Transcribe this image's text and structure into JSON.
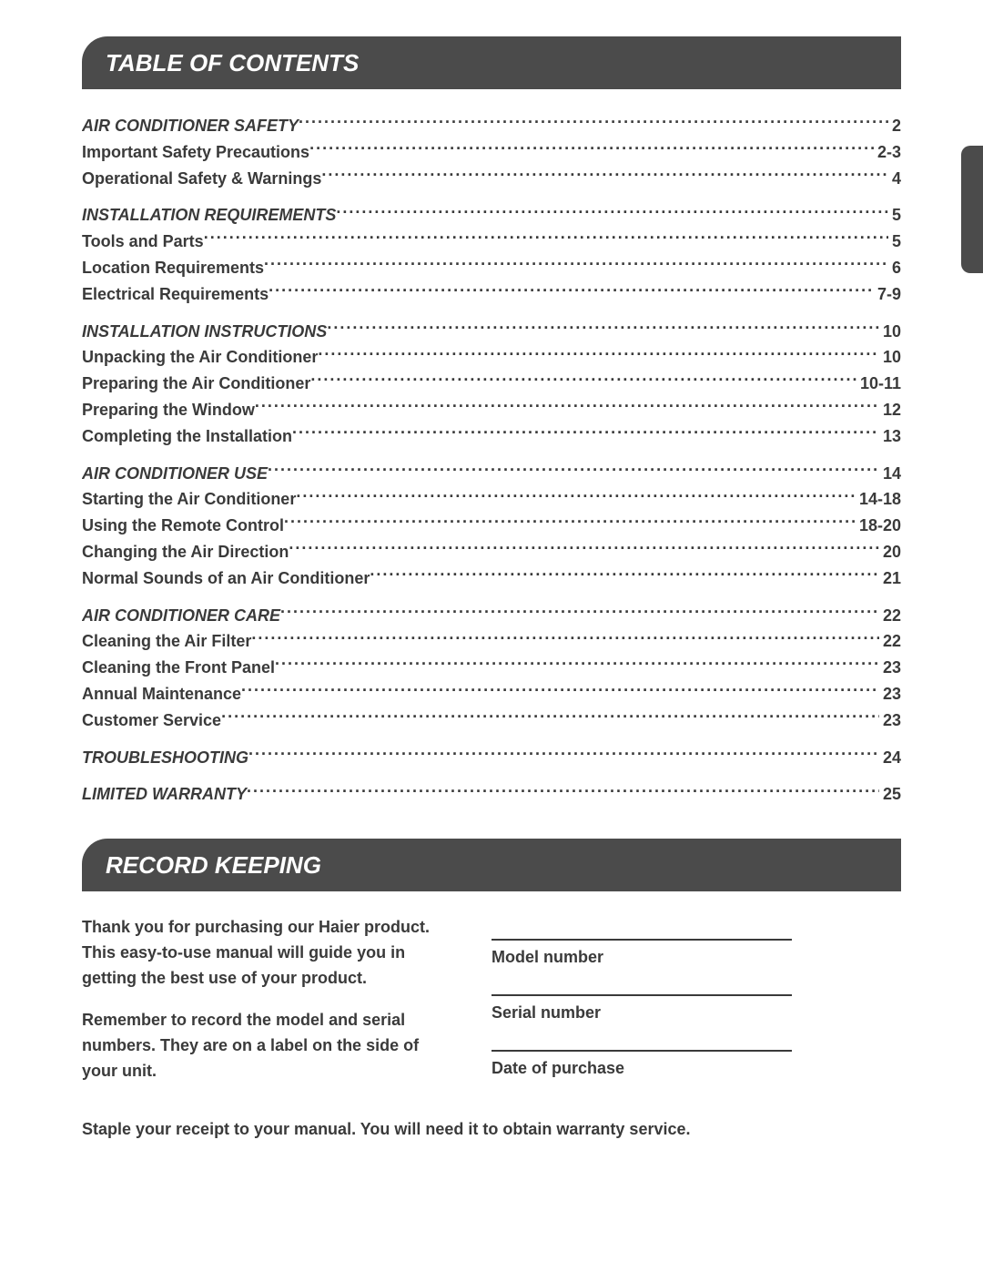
{
  "style": {
    "page_bg": "#ffffff",
    "bar_bg": "#4b4b4b",
    "bar_fg": "#ffffff",
    "text_color": "#3a3a3a",
    "line_color": "#3a3a3a",
    "font_size_body": 18,
    "font_size_header": 26,
    "header_radius": 28
  },
  "header1": "TABLE OF CONTENTS",
  "toc": [
    {
      "label": "AIR CONDITIONER SAFETY",
      "page": "2",
      "italic": true
    },
    {
      "label": "Important Safety Precautions ",
      "page": "2-3"
    },
    {
      "label": "Operational Safety & Warnings ",
      "page": "4"
    },
    {
      "gap": true
    },
    {
      "label": "INSTALLATION REQUIREMENTS",
      "page": "5",
      "italic": true
    },
    {
      "label": "Tools and Parts",
      "page": "5"
    },
    {
      "label": "Location Requirements",
      "page": "6"
    },
    {
      "label": "Electrical Requirements",
      "page": "7-9"
    },
    {
      "gap": true
    },
    {
      "label": "INSTALLATION INSTRUCTIONS",
      "page": "10",
      "italic": true
    },
    {
      "label": "Unpacking the Air Conditioner",
      "page": "10"
    },
    {
      "label": "Preparing the Air Conditioner",
      "page": "10-11"
    },
    {
      "label": "Preparing the Window",
      "page": "12"
    },
    {
      "label": "Completing the Installation",
      "page": "13"
    },
    {
      "gap": true
    },
    {
      "label": "AIR CONDITIONER USE",
      "page": "14",
      "italic": true
    },
    {
      "label": "Starting the Air Conditioner",
      "page": "14-18"
    },
    {
      "label": "Using the Remote Control",
      "page": "18-20"
    },
    {
      "label": "Changing the Air Direction",
      "page": "20"
    },
    {
      "label": "Normal Sounds of an Air Conditioner",
      "page": "21"
    },
    {
      "gap": true
    },
    {
      "label": "AIR CONDITIONER CARE",
      "page": "22",
      "italic": true
    },
    {
      "label": "Cleaning the Air Filter",
      "page": "22"
    },
    {
      "label": "Cleaning the Front Panel",
      "page": "23"
    },
    {
      "label": "Annual Maintenance",
      "page": "23"
    },
    {
      "label": "Customer Service",
      "page": "23"
    },
    {
      "gap": true
    },
    {
      "label": "TROUBLESHOOTING",
      "page": "24",
      "italic": true
    },
    {
      "gap": true
    },
    {
      "label": "LIMITED WARRANTY",
      "page": "25",
      "italic": true
    }
  ],
  "header2": "RECORD KEEPING",
  "record": {
    "p1": "Thank you for purchasing our Haier product. This easy-to-use manual will guide you in getting the best use of your product.",
    "p2": "Remember to record the model and serial numbers. They are on a label on the side of your unit.",
    "model_label": "Model number",
    "serial_label": "Serial number",
    "date_label": "Date of purchase",
    "footer": "Staple your receipt to your manual. You will need it to obtain warranty service."
  }
}
